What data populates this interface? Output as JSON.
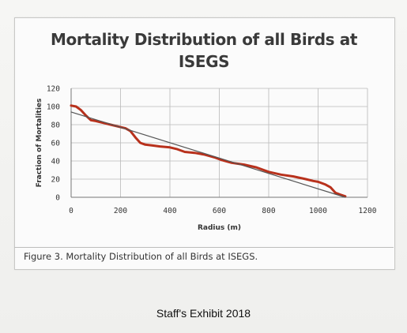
{
  "chart_data": {
    "type": "line",
    "title_lines": [
      "Mortality Distribution of all Birds at",
      "ISEGS"
    ],
    "xlabel": "Radius (m)",
    "ylabel": "Fraction of Mortalities",
    "xlim": [
      0,
      1200
    ],
    "ylim": [
      0,
      120
    ],
    "x_ticks": [
      0,
      200,
      400,
      600,
      800,
      1000,
      1200
    ],
    "y_ticks": [
      0,
      20,
      40,
      60,
      80,
      100,
      120
    ],
    "grid": true,
    "series": [
      {
        "color": "#b8311c",
        "x": [
          0,
          20,
          40,
          60,
          80,
          100,
          130,
          160,
          190,
          220,
          240,
          260,
          280,
          300,
          330,
          360,
          400,
          430,
          460,
          500,
          540,
          580,
          610,
          650,
          700,
          750,
          800,
          850,
          900,
          950,
          980,
          1000,
          1030,
          1050,
          1070,
          1090,
          1110
        ],
        "y": [
          101,
          100,
          96,
          90,
          85,
          84,
          82,
          80,
          78,
          76,
          73,
          66,
          60,
          58,
          57,
          56,
          55,
          53,
          50,
          49,
          47,
          44,
          41,
          38,
          36,
          33,
          28,
          25,
          23,
          20,
          18,
          17,
          14,
          11,
          5,
          3,
          1
        ]
      },
      {
        "color": "#555555",
        "x": [
          0,
          1110
        ],
        "y": [
          94,
          0
        ]
      }
    ]
  },
  "caption": "Figure 3. Mortality Distribution of all Birds at ISEGS.",
  "footer": "Staff's Exhibit 2018"
}
